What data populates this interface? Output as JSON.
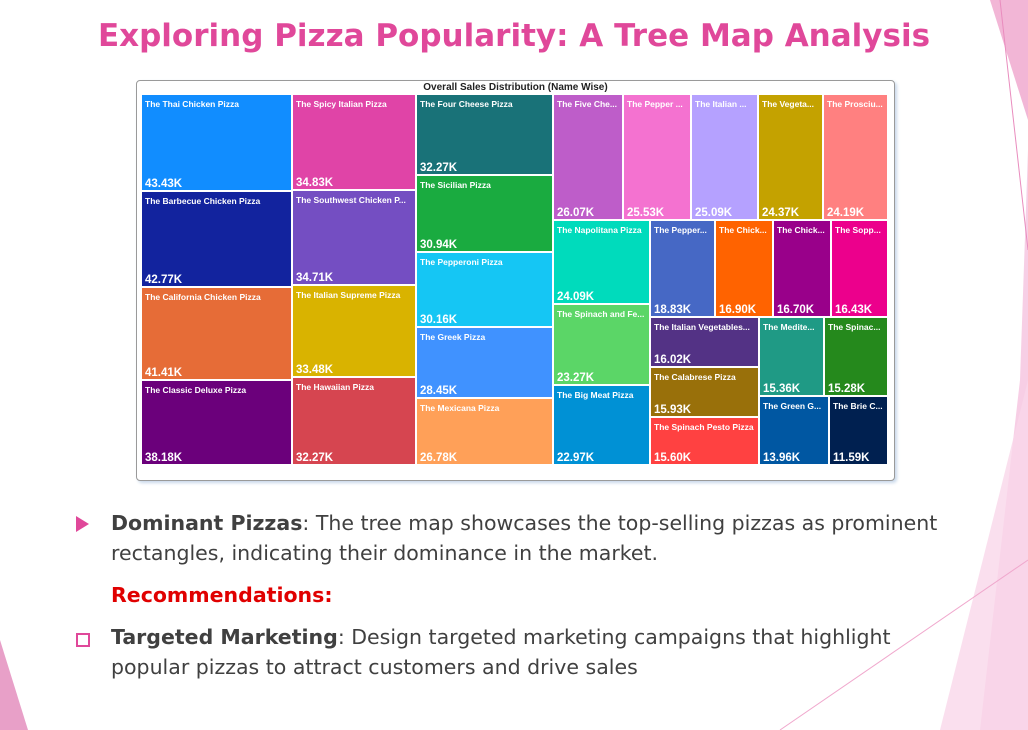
{
  "title": "Exploring Pizza Popularity: A Tree Map Analysis",
  "colors": {
    "accent": "#e0489a",
    "recommendation": "#e00000",
    "body_text": "#404040"
  },
  "bullets": {
    "point1": {
      "heading": "Dominant Pizzas",
      "text": "The tree map showcases the top-selling pizzas as prominent rectangles, indicating their dominance in the market.",
      "icon": "triangle-bullet-icon"
    },
    "recommendations_label": "Recommendations:",
    "point2": {
      "heading": "Targeted Marketing",
      "text": "Design targeted marketing campaigns that highlight popular pizzas to attract customers and drive sales",
      "icon": "checkbox-bullet-icon"
    }
  },
  "chart_data": {
    "type": "treemap",
    "title": "Overall Sales Distribution (Name Wise)",
    "items": [
      {
        "label": "The Thai Chicken Pizza",
        "value_label": "43.43K",
        "value": 43430,
        "color": "#118dff"
      },
      {
        "label": "The Barbecue Chicken Pizza",
        "value_label": "42.77K",
        "value": 42770,
        "color": "#12239e"
      },
      {
        "label": "The California Chicken Pizza",
        "value_label": "41.41K",
        "value": 41410,
        "color": "#e66c37"
      },
      {
        "label": "The Classic Deluxe Pizza",
        "value_label": "38.18K",
        "value": 38180,
        "color": "#6b007b"
      },
      {
        "label": "The Spicy Italian Pizza",
        "value_label": "34.83K",
        "value": 34830,
        "color": "#e044a7"
      },
      {
        "label": "The Southwest Chicken P...",
        "value_label": "34.71K",
        "value": 34710,
        "color": "#744ec2"
      },
      {
        "label": "The Italian Supreme Pizza",
        "value_label": "33.48K",
        "value": 33480,
        "color": "#d9b300"
      },
      {
        "label": "The Hawaiian Pizza",
        "value_label": "32.27K",
        "value": 32270,
        "color": "#d64550"
      },
      {
        "label": "The Four Cheese Pizza",
        "value_label": "32.27K",
        "value": 32270,
        "color": "#197278"
      },
      {
        "label": "The Sicilian Pizza",
        "value_label": "30.94K",
        "value": 30940,
        "color": "#1aab40"
      },
      {
        "label": "The Pepperoni Pizza",
        "value_label": "30.16K",
        "value": 30160,
        "color": "#15c6f4"
      },
      {
        "label": "The Greek Pizza",
        "value_label": "28.45K",
        "value": 28450,
        "color": "#4092ff"
      },
      {
        "label": "The Mexicana Pizza",
        "value_label": "26.78K",
        "value": 26780,
        "color": "#ffa058"
      },
      {
        "label": "The Five Che...",
        "value_label": "26.07K",
        "value": 26070,
        "color": "#be5dc9"
      },
      {
        "label": "The Pepper ...",
        "value_label": "25.53K",
        "value": 25530,
        "color": "#f472d0"
      },
      {
        "label": "The Italian ...",
        "value_label": "25.09K",
        "value": 25090,
        "color": "#b5a1ff"
      },
      {
        "label": "The Vegeta...",
        "value_label": "24.37K",
        "value": 24370,
        "color": "#c4a200"
      },
      {
        "label": "The Prosciu...",
        "value_label": "24.19K",
        "value": 24190,
        "color": "#ff8080"
      },
      {
        "label": "The Napolitana Pizza",
        "value_label": "24.09K",
        "value": 24090,
        "color": "#00dbbc"
      },
      {
        "label": "The Spinach and Fe...",
        "value_label": "23.27K",
        "value": 23270,
        "color": "#5bd667"
      },
      {
        "label": "The Big Meat Pizza",
        "value_label": "22.97K",
        "value": 22970,
        "color": "#0091d5"
      },
      {
        "label": "The Pepper...",
        "value_label": "18.83K",
        "value": 18830,
        "color": "#4668c5"
      },
      {
        "label": "The Chick...",
        "value_label": "16.90K",
        "value": 16900,
        "color": "#ff6300"
      },
      {
        "label": "The Chick...",
        "value_label": "16.70K",
        "value": 16700,
        "color": "#99008a"
      },
      {
        "label": "The Sopp...",
        "value_label": "16.43K",
        "value": 16430,
        "color": "#ec008c"
      },
      {
        "label": "The Italian Vegetables...",
        "value_label": "16.02K",
        "value": 16020,
        "color": "#533285"
      },
      {
        "label": "The Calabrese Pizza",
        "value_label": "15.93K",
        "value": 15930,
        "color": "#99700a"
      },
      {
        "label": "The Spinach Pesto Pizza",
        "value_label": "15.60K",
        "value": 15600,
        "color": "#ff4141"
      },
      {
        "label": "The Medite...",
        "value_label": "15.36K",
        "value": 15360,
        "color": "#1f9a85"
      },
      {
        "label": "The Spinac...",
        "value_label": "15.28K",
        "value": 15280,
        "color": "#25891c"
      },
      {
        "label": "The Green G...",
        "value_label": "13.96K",
        "value": 13960,
        "color": "#0057a2"
      },
      {
        "label": "The Brie C...",
        "value_label": "11.59K",
        "value": 11590,
        "color": "#002050"
      }
    ]
  }
}
